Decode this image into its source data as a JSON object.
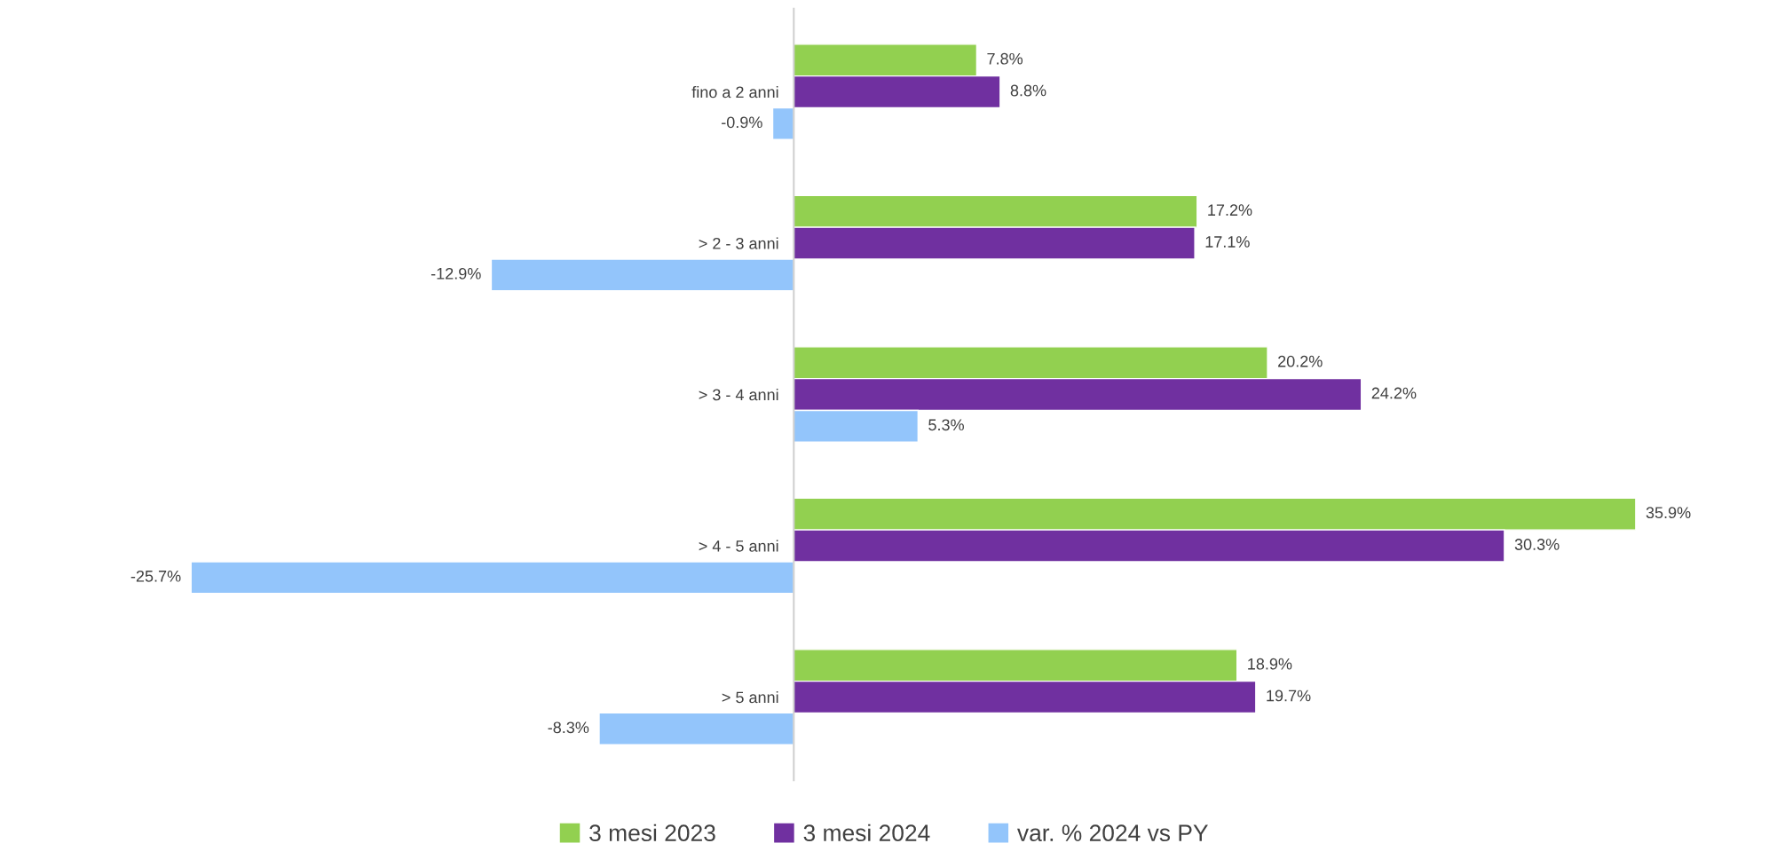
{
  "chart_data": {
    "type": "bar",
    "orientation": "horizontal",
    "categories": [
      "fino a 2 anni",
      "> 2 - 3 anni",
      "> 3 - 4 anni",
      "> 4 - 5 anni",
      "> 5 anni"
    ],
    "series": [
      {
        "name": "3 mesi 2023",
        "color": "#92d050",
        "values": [
          7.8,
          17.2,
          20.2,
          35.9,
          18.9
        ],
        "value_labels": [
          "7.8%",
          "17.2%",
          "20.2%",
          "35.9%",
          "18.9%"
        ]
      },
      {
        "name": "3 mesi 2024",
        "color": "#7030a0",
        "values": [
          8.8,
          17.1,
          24.2,
          30.3,
          19.7
        ],
        "value_labels": [
          "8.8%",
          "17.1%",
          "24.2%",
          "30.3%",
          "19.7%"
        ]
      },
      {
        "name": "var. % 2024 vs PY",
        "color": "#93c5fb",
        "values": [
          -0.9,
          -12.9,
          5.3,
          -25.7,
          -8.3
        ],
        "value_labels": [
          "-0.9%",
          "-12.9%",
          "5.3%",
          "-25.7%",
          "-8.3%"
        ]
      }
    ],
    "grid": false,
    "legend": "bottom"
  }
}
